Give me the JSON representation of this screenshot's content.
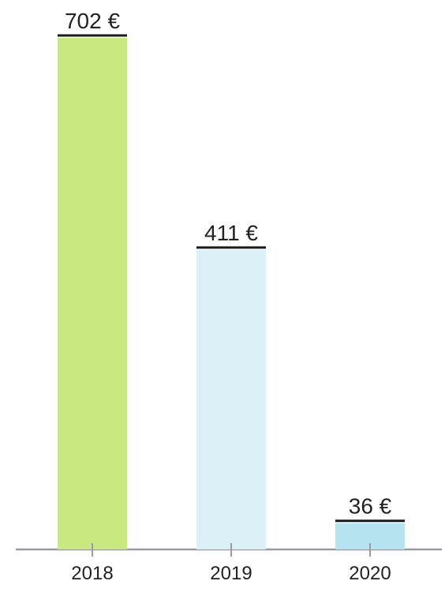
{
  "chart_data": {
    "type": "bar",
    "categories": [
      "2018",
      "2019",
      "2020"
    ],
    "values": [
      702,
      411,
      36
    ],
    "value_labels": [
      "702 €",
      "411 €",
      "36 €"
    ],
    "colors": [
      "#c9e880",
      "#dcf0f8",
      "#b5e3f0"
    ]
  }
}
